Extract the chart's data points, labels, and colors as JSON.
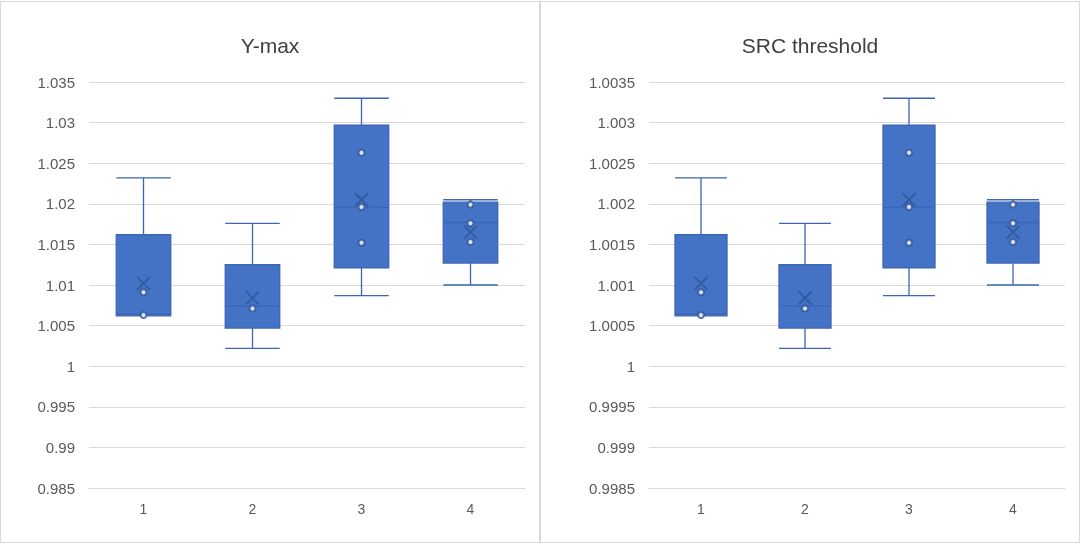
{
  "chart_data": [
    {
      "type": "box",
      "title": "Y-max",
      "categories": [
        "1",
        "2",
        "3",
        "4"
      ],
      "ylim": [
        0.985,
        1.035
      ],
      "yticks": [
        0.985,
        0.99,
        0.995,
        1,
        1.005,
        1.01,
        1.015,
        1.02,
        1.025,
        1.03,
        1.035
      ],
      "grid": "y",
      "series": [
        {
          "color": "#4472c4",
          "boxes": [
            {
              "low": 1.0062,
              "q1": 1.0062,
              "median": 1.0064,
              "q3": 1.0162,
              "high": 1.0232,
              "mean": 1.0102
            },
            {
              "low": 1.0022,
              "q1": 1.0047,
              "median": 1.0074,
              "q3": 1.0125,
              "high": 1.0176,
              "mean": 1.0084
            },
            {
              "low": 1.0087,
              "q1": 1.0121,
              "median": 1.0196,
              "q3": 1.0297,
              "high": 1.033,
              "mean": 1.0205
            },
            {
              "low": 1.01,
              "q1": 1.0127,
              "median": 1.0177,
              "q3": 1.0202,
              "high": 1.0205,
              "mean": 1.0165
            }
          ]
        },
        {
          "type": "scatter",
          "marker": "circle",
          "color": "#2f5597",
          "x": [
            "1",
            "1",
            "2",
            "3",
            "3",
            "3",
            "4",
            "4",
            "4"
          ],
          "values": [
            1.0091,
            1.0063,
            1.0071,
            1.0263,
            1.0196,
            1.0152,
            1.0199,
            1.0176,
            1.0153
          ]
        }
      ]
    },
    {
      "type": "box",
      "title": "SRC threshold",
      "categories": [
        "1",
        "2",
        "3",
        "4"
      ],
      "ylim": [
        0.9985,
        1.0035
      ],
      "yticks": [
        0.9985,
        0.999,
        0.9995,
        1,
        1.0005,
        1.001,
        1.0015,
        1.002,
        1.0025,
        1.003,
        1.0035
      ],
      "grid": "y",
      "series": [
        {
          "color": "#4472c4",
          "boxes": [
            {
              "low": 1.00062,
              "q1": 1.00062,
              "median": 1.00064,
              "q3": 1.00162,
              "high": 1.00232,
              "mean": 1.00102
            },
            {
              "low": 1.00022,
              "q1": 1.00047,
              "median": 1.00074,
              "q3": 1.00125,
              "high": 1.00176,
              "mean": 1.00084
            },
            {
              "low": 1.00087,
              "q1": 1.00121,
              "median": 1.00196,
              "q3": 1.00297,
              "high": 1.0033,
              "mean": 1.00205
            },
            {
              "low": 1.001,
              "q1": 1.00127,
              "median": 1.00177,
              "q3": 1.00202,
              "high": 1.00205,
              "mean": 1.00165
            }
          ]
        },
        {
          "type": "scatter",
          "marker": "circle",
          "color": "#2f5597",
          "x": [
            "1",
            "1",
            "2",
            "3",
            "3",
            "3",
            "4",
            "4",
            "4"
          ],
          "values": [
            1.00091,
            1.00063,
            1.00071,
            1.00263,
            1.00196,
            1.00152,
            1.00199,
            1.00176,
            1.00153
          ]
        }
      ]
    }
  ]
}
